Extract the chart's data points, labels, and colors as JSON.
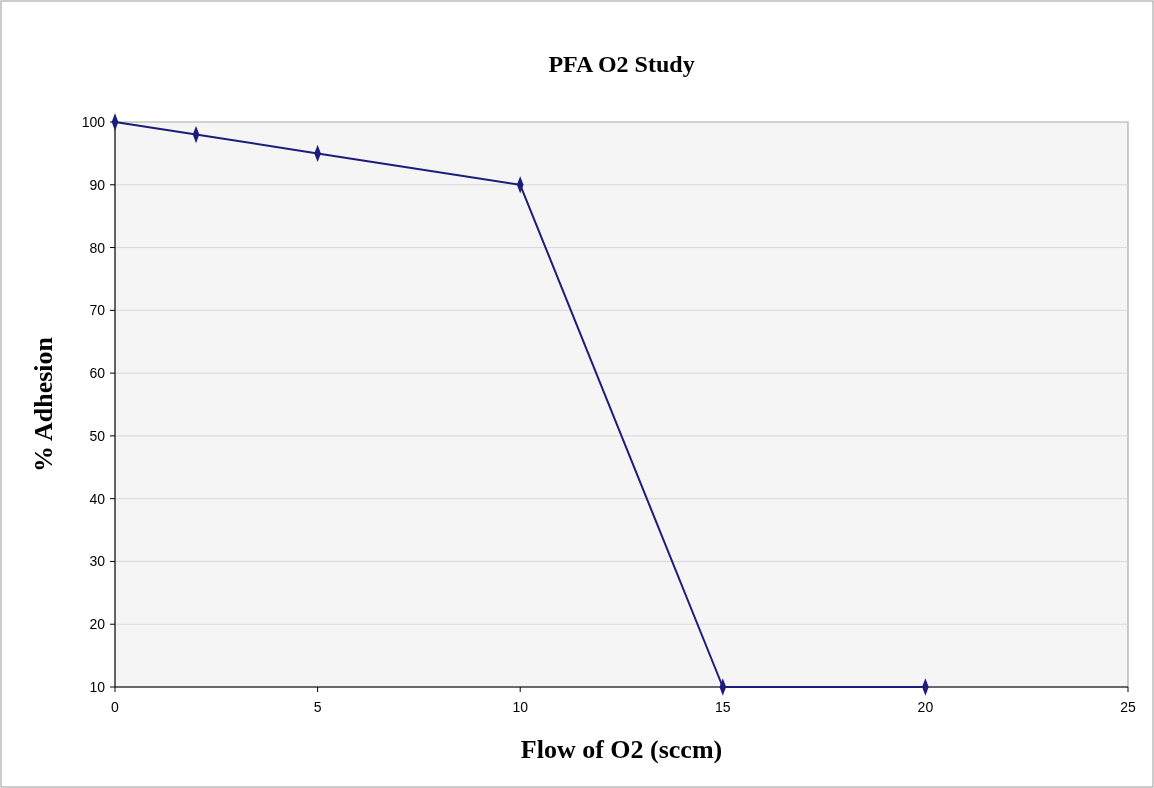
{
  "chart_data": {
    "type": "line",
    "title": "PFA O2 Study",
    "xlabel": "Flow of O2 (sccm)",
    "ylabel": "% Adhesion",
    "x": [
      0,
      2,
      5,
      10,
      15,
      20
    ],
    "series": [
      {
        "color": "#1c1c7a",
        "values": [
          100,
          98,
          95,
          90,
          10,
          10
        ]
      }
    ],
    "xlim": [
      0,
      25
    ],
    "xticks": [
      0,
      5,
      10,
      15,
      20,
      25
    ],
    "ylim": [
      10,
      100
    ],
    "yticks": [
      10,
      20,
      30,
      40,
      50,
      60,
      70,
      80,
      90,
      100
    ],
    "grid": "y",
    "marker": "diamond",
    "line_style": "solid"
  }
}
